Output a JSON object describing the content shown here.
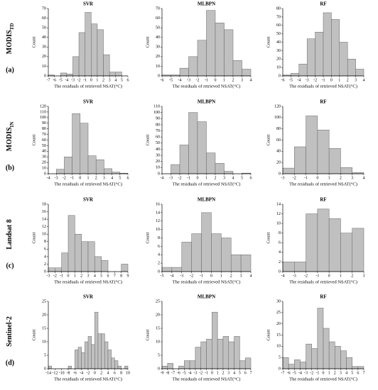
{
  "rows": [
    {
      "label": "MODIS",
      "sub": "TD",
      "letter": "(a)"
    },
    {
      "label": "MODIS",
      "sub": "IN",
      "letter": "(b)"
    },
    {
      "label": "Landsat 8",
      "letter": "(c)"
    },
    {
      "label": "Sentinel-2",
      "letter": "(d)"
    }
  ],
  "chart_data": [
    {
      "type": "histogram",
      "title": "SVR",
      "xlabel": "The residuals of retrieved NSAT(°C)",
      "ylabel": "Count",
      "color": "#c0c0c0",
      "bins": [
        -7,
        -6,
        -5,
        -4,
        -3,
        -2,
        -1,
        0,
        1,
        2,
        3,
        4,
        5,
        6
      ],
      "values": [
        1,
        0,
        3,
        2,
        20,
        45,
        66,
        54,
        48,
        22,
        4,
        4,
        0
      ],
      "xlim": [
        -7,
        6
      ],
      "xticks": [
        -7,
        -6,
        -5,
        -4,
        -3,
        -2,
        -1,
        0,
        1,
        2,
        3,
        4,
        5,
        6
      ],
      "ylim": [
        0,
        70
      ],
      "yticks": [
        0,
        10,
        20,
        30,
        40,
        50,
        60,
        70
      ]
    },
    {
      "type": "histogram",
      "title": "MLBPN",
      "xlabel": "The residuals of retrieved NSAT(°C)",
      "ylabel": "Count",
      "color": "#c0c0c0",
      "bins": [
        -6,
        -5,
        -4,
        -3,
        -2,
        -1,
        0,
        1,
        2,
        3,
        4
      ],
      "values": [
        1,
        1,
        8,
        20,
        37,
        68,
        55,
        48,
        16,
        7
      ],
      "xlim": [
        -6,
        4
      ],
      "xticks": [
        -6,
        -5,
        -4,
        -3,
        -2,
        -1,
        0,
        1,
        2,
        3,
        4
      ],
      "ylim": [
        0,
        70
      ],
      "yticks": [
        0,
        10,
        20,
        30,
        40,
        50,
        60,
        70
      ]
    },
    {
      "type": "histogram",
      "title": "RF",
      "xlabel": "The residuals of retrieved NSAT(°C)",
      "ylabel": "Count",
      "color": "#c0c0c0",
      "bins": [
        -6,
        -5,
        -4,
        -3,
        -2,
        -1,
        0,
        1,
        2,
        3,
        4
      ],
      "values": [
        1,
        3,
        14,
        44,
        52,
        75,
        67,
        40,
        20,
        8
      ],
      "xlim": [
        -6,
        4
      ],
      "xticks": [
        -6,
        -5,
        -4,
        -3,
        -2,
        -1,
        0,
        1,
        2,
        3,
        4
      ],
      "ylim": [
        0,
        80
      ],
      "yticks": [
        0,
        10,
        20,
        30,
        40,
        50,
        60,
        70,
        80
      ]
    },
    {
      "type": "histogram",
      "title": "SVR",
      "xlabel": "The residuals of retrieved NSAT(°C)",
      "ylabel": "Count",
      "color": "#c0c0c0",
      "bins": [
        -4,
        -3,
        -2,
        -1,
        0,
        1,
        2,
        3,
        4,
        5,
        6
      ],
      "values": [
        0,
        8,
        30,
        107,
        90,
        32,
        25,
        9,
        3,
        1
      ],
      "xlim": [
        -4,
        6
      ],
      "xticks": [
        -4,
        -3,
        -2,
        -1,
        0,
        1,
        2,
        3,
        4,
        5,
        6
      ],
      "ylim": [
        0,
        120
      ],
      "yticks": [
        0,
        10,
        20,
        30,
        40,
        50,
        60,
        70,
        80,
        90,
        100,
        110,
        120
      ]
    },
    {
      "type": "histogram",
      "title": "MLBPN",
      "xlabel": "The residuals of retrieved NSAT(°C)",
      "ylabel": "Count",
      "color": "#c0c0c0",
      "bins": [
        -4,
        -3,
        -2,
        -1,
        0,
        1,
        2,
        3,
        4,
        5,
        6
      ],
      "values": [
        0,
        15,
        47,
        100,
        85,
        34,
        17,
        4,
        0,
        1
      ],
      "xlim": [
        -4,
        6
      ],
      "xticks": [
        -4,
        -3,
        -2,
        -1,
        0,
        1,
        2,
        3,
        4,
        5,
        6
      ],
      "ylim": [
        0,
        110
      ],
      "yticks": [
        0,
        10,
        20,
        30,
        40,
        50,
        60,
        70,
        80,
        90,
        100,
        110
      ]
    },
    {
      "type": "histogram",
      "title": "RF",
      "xlabel": "The residuals of retrieved NSAT(°C)",
      "ylabel": "Count",
      "color": "#c0c0c0",
      "bins": [
        -3,
        -2,
        -1,
        0,
        1,
        2,
        3,
        4
      ],
      "values": [
        10,
        48,
        103,
        78,
        45,
        11,
        2
      ],
      "xlim": [
        -3,
        4
      ],
      "xticks": [
        -3,
        -2,
        -1,
        0,
        1,
        2,
        3,
        4
      ],
      "ylim": [
        0,
        120
      ],
      "yticks": [
        0,
        20,
        40,
        60,
        80,
        100,
        120
      ]
    },
    {
      "type": "histogram",
      "title": "SVR",
      "xlabel": "The residuals of retrieved NSAT(°C)",
      "ylabel": "Count",
      "color": "#c0c0c0",
      "bins": [
        -3,
        -2,
        -1,
        0,
        1,
        2,
        3,
        4,
        5,
        6,
        7,
        8,
        9
      ],
      "values": [
        1,
        1,
        5,
        15,
        10,
        8,
        8,
        4,
        3,
        0,
        0,
        2
      ],
      "xlim": [
        -3,
        9
      ],
      "xticks": [
        -3,
        -2,
        -1,
        0,
        1,
        2,
        3,
        4,
        5,
        6,
        7,
        8,
        9
      ],
      "ylim": [
        0,
        18
      ],
      "yticks": [
        0,
        2,
        4,
        6,
        8,
        10,
        12,
        14,
        16,
        18
      ]
    },
    {
      "type": "histogram",
      "title": "MLBPN",
      "xlabel": "The residuals of retrieved NSAT(°C)",
      "ylabel": "Count",
      "color": "#c0c0c0",
      "bins": [
        -5,
        -4,
        -3,
        -2,
        -1,
        0,
        1,
        2,
        3,
        4
      ],
      "values": [
        1,
        1,
        7,
        9,
        14,
        9,
        8,
        4,
        4
      ],
      "xlim": [
        -5,
        4
      ],
      "xticks": [
        -5,
        -4,
        -3,
        -2,
        -1,
        0,
        1,
        2,
        3,
        4
      ],
      "ylim": [
        0,
        16
      ],
      "yticks": [
        0,
        2,
        4,
        6,
        8,
        10,
        12,
        14,
        16
      ]
    },
    {
      "type": "histogram",
      "title": "RF",
      "xlabel": "The residuals of retrieved NSAT(°C)",
      "ylabel": "Count",
      "color": "#c0c0c0",
      "bins": [
        -4,
        -3,
        -2,
        -1,
        0,
        1,
        2,
        3
      ],
      "values": [
        2,
        2,
        12,
        13,
        11,
        8,
        9
      ],
      "xlim": [
        -4,
        3
      ],
      "xticks": [
        -4,
        -3,
        -2,
        -1,
        0,
        1,
        2,
        3
      ],
      "ylim": [
        0,
        14
      ],
      "yticks": [
        0,
        2,
        4,
        6,
        8,
        10,
        12,
        14
      ]
    },
    {
      "type": "histogram",
      "title": "SVR",
      "xlabel": "The residuals of retrieved NSAT(°C)",
      "ylabel": "Count",
      "color": "#c0c0c0",
      "bins": [
        -14,
        -13,
        -12,
        -11,
        -10,
        -9,
        -8,
        -7,
        -6,
        -5,
        -4,
        -3,
        -2,
        -1,
        0,
        1,
        2,
        3,
        4,
        5,
        6,
        7,
        8,
        9,
        10
      ],
      "values": [
        1,
        0,
        0,
        0,
        0,
        0,
        1,
        0,
        7,
        8,
        6,
        10,
        12,
        9,
        21,
        13,
        13,
        10,
        7,
        4,
        3,
        1,
        0,
        1
      ],
      "xlim": [
        -14,
        10
      ],
      "xticks": [
        -14,
        -12,
        -10,
        -8,
        -6,
        -4,
        -2,
        0,
        2,
        4,
        6,
        8,
        10
      ],
      "ylim": [
        0,
        25
      ],
      "yticks": [
        0,
        5,
        10,
        15,
        20,
        25
      ]
    },
    {
      "type": "histogram",
      "title": "MLBPN",
      "xlabel": "The residuals of retrieved NSAT(°C)",
      "ylabel": "Count",
      "color": "#c0c0c0",
      "bins": [
        -9,
        -8,
        -7,
        -6,
        -5,
        -4,
        -3,
        -2,
        -1,
        0,
        1,
        2,
        3,
        4,
        5,
        6,
        7
      ],
      "values": [
        1,
        2,
        0,
        1,
        3,
        3,
        8,
        10,
        11,
        21,
        11,
        12,
        10,
        12,
        3,
        4
      ],
      "xlim": [
        -9,
        7
      ],
      "xticks": [
        -9,
        -8,
        -7,
        -6,
        -5,
        -4,
        -3,
        -2,
        -1,
        0,
        1,
        2,
        3,
        4,
        5,
        6,
        7
      ],
      "ylim": [
        0,
        25
      ],
      "yticks": [
        0,
        5,
        10,
        15,
        20,
        25
      ]
    },
    {
      "type": "histogram",
      "title": "RF",
      "xlabel": "The residuals of retrieved NSAT(°C)",
      "ylabel": "Count",
      "color": "#c0c0c0",
      "bins": [
        -7,
        -6,
        -5,
        -4,
        -3,
        -2,
        -1,
        0,
        1,
        2,
        3,
        4,
        5,
        6,
        7
      ],
      "values": [
        5,
        2,
        4,
        3,
        11,
        9,
        27,
        18,
        12,
        10,
        8,
        5,
        1,
        1
      ],
      "xlim": [
        -7,
        7
      ],
      "xticks": [
        -7,
        -6,
        -5,
        -4,
        -3,
        -2,
        -1,
        0,
        1,
        2,
        3,
        4,
        5,
        6,
        7
      ],
      "ylim": [
        0,
        30
      ],
      "yticks": [
        0,
        5,
        10,
        15,
        20,
        25,
        30
      ]
    }
  ]
}
